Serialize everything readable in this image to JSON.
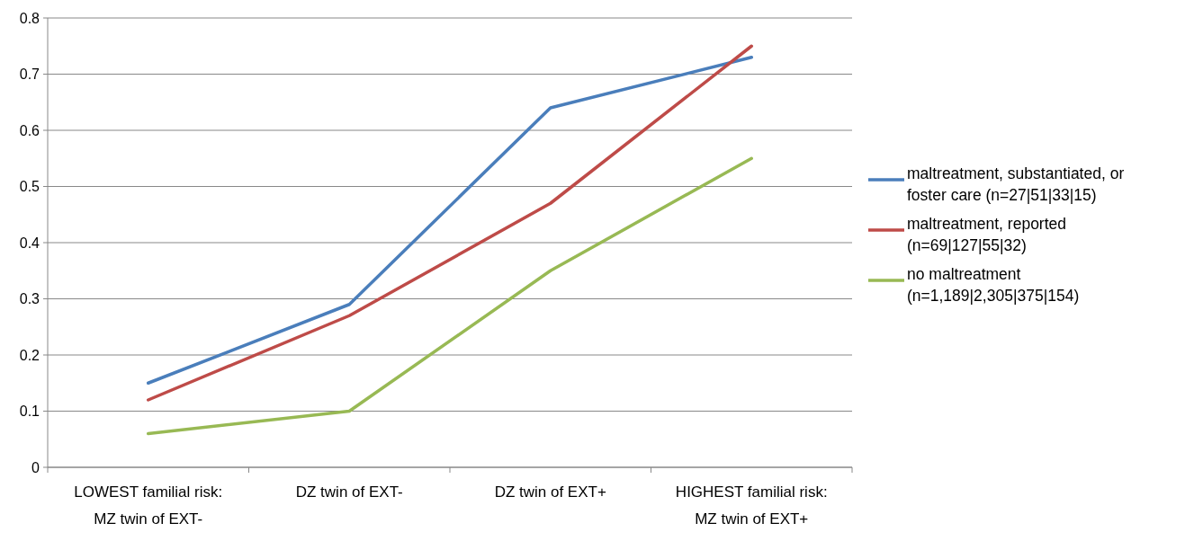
{
  "chart_data": {
    "type": "line",
    "categories": [
      "LOWEST familial risk: MZ twin of EXT-",
      "DZ twin of EXT-",
      "DZ twin of EXT+",
      "HIGHEST familial risk: MZ twin of EXT+"
    ],
    "series": [
      {
        "name": "maltreatment, substantiated, or foster care (n=27|51|33|15)",
        "color": "#4a7ebb",
        "values": [
          0.15,
          0.29,
          0.64,
          0.73
        ]
      },
      {
        "name": "maltreatment, reported (n=69|127|55|32)",
        "color": "#be4b48",
        "values": [
          0.12,
          0.27,
          0.47,
          0.75
        ]
      },
      {
        "name": "no maltreatment (n=1,189|2,305|375|154)",
        "color": "#98b954",
        "values": [
          0.06,
          0.1,
          0.35,
          0.55
        ]
      }
    ],
    "ylim": [
      0,
      0.8
    ],
    "yticks": [
      0,
      0.1,
      0.2,
      0.3,
      0.4,
      0.5,
      0.6,
      0.7,
      0.8
    ],
    "grid": "y",
    "legend": "right",
    "marker": "none",
    "line_style": "solid"
  }
}
